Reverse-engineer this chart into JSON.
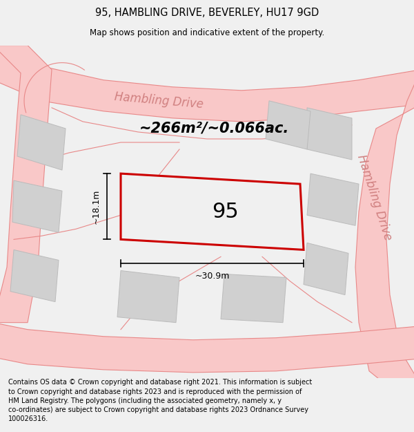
{
  "title_line1": "95, HAMBLING DRIVE, BEVERLEY, HU17 9GD",
  "title_line2": "Map shows position and indicative extent of the property.",
  "area_text": "~266m²/~0.066ac.",
  "house_number": "95",
  "dim_width": "~30.9m",
  "dim_height": "~18.1m",
  "footer_text": "Contains OS data © Crown copyright and database right 2021. This information is subject to Crown copyright and database rights 2023 and is reproduced with the permission of HM Land Registry. The polygons (including the associated geometry, namely x, y co-ordinates) are subject to Crown copyright and database rights 2023 Ordnance Survey 100026316.",
  "bg_color": "#f0f0f0",
  "map_bg": "#f0f0f0",
  "road_color": "#f9c8c8",
  "road_edge_color": "#e88888",
  "block_color": "#d0d0d0",
  "block_edge_color": "#bbbbbb",
  "plot_fill": "#f0f0f0",
  "plot_edge": "#cc0000",
  "text_color": "#000000",
  "road_label_color": "#d08080",
  "title_color": "#000000",
  "footer_color": "#000000",
  "figsize": [
    6.0,
    6.25
  ],
  "dpi": 100
}
